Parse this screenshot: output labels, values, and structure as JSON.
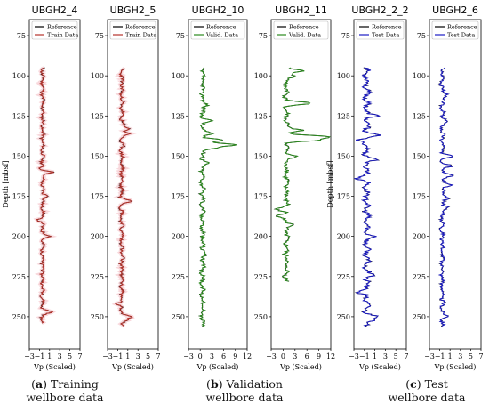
{
  "chart_data": [
    {
      "type": "line",
      "title": "UBGH2_4",
      "ylabel": "Depth [mbsf]",
      "xlabel": "Vp (Scaled)",
      "xlim": [
        -3,
        7
      ],
      "xticks": [
        -3,
        -1,
        1,
        3,
        5,
        7
      ],
      "ylim": [
        270,
        65
      ],
      "yticks": [
        75,
        100,
        125,
        150,
        175,
        200,
        225,
        250
      ],
      "legend": "top",
      "series": [
        {
          "name": "Reference",
          "color": "#000000"
        },
        {
          "name": "Train Data",
          "color": "#b5322a"
        }
      ],
      "depth_range": [
        95,
        254
      ],
      "profile": {
        "base": -0.4,
        "amp": 0.5,
        "spikes": [
          [
            160,
            1.8
          ],
          [
            158,
            -1.2
          ],
          [
            190,
            -1.3
          ],
          [
            175,
            0.9
          ],
          [
            247,
            1.4
          ],
          [
            200,
            1.0
          ]
        ]
      },
      "seed": 11
    },
    {
      "type": "line",
      "title": "UBGH2_5",
      "ylabel": "",
      "xlabel": "Vp (Scaled)",
      "xlim": [
        -3,
        7
      ],
      "xticks": [
        -3,
        -1,
        1,
        3,
        5,
        7
      ],
      "ylim": [
        270,
        65
      ],
      "yticks": [
        75,
        100,
        125,
        150,
        175,
        200,
        225,
        250
      ],
      "legend": "top",
      "series": [
        {
          "name": "Reference",
          "color": "#000000"
        },
        {
          "name": "Train Data",
          "color": "#b5322a"
        }
      ],
      "depth_range": [
        95,
        256
      ],
      "profile": {
        "base": -0.2,
        "amp": 0.6,
        "spikes": [
          [
            133,
            1.6
          ],
          [
            136,
            1.2
          ],
          [
            178,
            1.8
          ],
          [
            242,
            -1.4
          ],
          [
            250,
            1.8
          ],
          [
            252,
            1.2
          ]
        ]
      },
      "seed": 23
    },
    {
      "type": "line",
      "title": "UBGH2_10",
      "ylabel": "",
      "xlabel": "Vp (Scaled)",
      "xlim": [
        -3,
        12
      ],
      "xticks": [
        -3,
        0,
        3,
        6,
        9,
        12
      ],
      "ylim": [
        270,
        65
      ],
      "yticks": [
        75,
        100,
        125,
        150,
        175,
        200,
        225,
        250
      ],
      "legend": "top",
      "series": [
        {
          "name": "Reference",
          "color": "#000000"
        },
        {
          "name": "Valid. Data",
          "color": "#2b8a1e"
        }
      ],
      "depth_range": [
        95,
        256
      ],
      "profile": {
        "base": 0.6,
        "amp": 0.9,
        "spikes": [
          [
            128,
            2.5
          ],
          [
            136,
            3.0
          ],
          [
            140,
            6.0
          ],
          [
            143,
            9.0
          ],
          [
            145,
            4.0
          ],
          [
            118,
            2.2
          ],
          [
            154,
            2.0
          ],
          [
            210,
            1.6
          ]
        ]
      },
      "seed": 37
    },
    {
      "type": "line",
      "title": "UBGH2_11",
      "ylabel": "",
      "xlabel": "Vp (Scaled)",
      "xlim": [
        -3,
        12
      ],
      "xticks": [
        -3,
        0,
        3,
        6,
        9,
        12
      ],
      "ylim": [
        270,
        65
      ],
      "yticks": [
        75,
        100,
        125,
        150,
        175,
        200,
        225,
        250
      ],
      "legend": "top",
      "series": [
        {
          "name": "Reference",
          "color": "#000000"
        },
        {
          "name": "Valid. Data",
          "color": "#2b8a1e"
        }
      ],
      "depth_range": [
        95,
        228
      ],
      "profile": {
        "base": 0.8,
        "amp": 1.0,
        "spikes": [
          [
            97,
            5.0
          ],
          [
            100,
            3.5
          ],
          [
            117,
            6.5
          ],
          [
            134,
            5.0
          ],
          [
            138,
            11.5
          ],
          [
            140,
            9.0
          ],
          [
            150,
            3.5
          ],
          [
            183,
            -1.5
          ],
          [
            187,
            -1.8
          ],
          [
            193,
            2.2
          ]
        ]
      },
      "seed": 41
    },
    {
      "type": "line",
      "title": "UBGH2_2_2",
      "ylabel": "Depth [mbsf]",
      "xlabel": "Vp (Scaled)",
      "xlim": [
        -3,
        7
      ],
      "xticks": [
        -3,
        -1,
        1,
        3,
        5,
        7
      ],
      "ylim": [
        270,
        65
      ],
      "yticks": [
        75,
        100,
        125,
        150,
        175,
        200,
        225,
        250
      ],
      "legend": "top",
      "series": [
        {
          "name": "Reference",
          "color": "#000000"
        },
        {
          "name": "Test Data",
          "color": "#1c1cc4"
        }
      ],
      "depth_range": [
        95,
        256
      ],
      "profile": {
        "base": -0.6,
        "amp": 0.9,
        "spikes": [
          [
            125,
            1.2
          ],
          [
            137,
            1.6
          ],
          [
            140,
            -2.4
          ],
          [
            152,
            1.1
          ],
          [
            164,
            -2.3
          ],
          [
            200,
            1.0
          ],
          [
            224,
            1.2
          ],
          [
            235,
            -2.4
          ],
          [
            250,
            1.5
          ],
          [
            252,
            0.9
          ]
        ]
      },
      "seed": 53
    },
    {
      "type": "line",
      "title": "UBGH2_6",
      "ylabel": "",
      "xlabel": "Vp (Scaled)",
      "xlim": [
        -3,
        7
      ],
      "xticks": [
        -3,
        -1,
        1,
        3,
        5,
        7
      ],
      "ylim": [
        270,
        65
      ],
      "yticks": [
        75,
        100,
        125,
        150,
        175,
        200,
        225,
        250
      ],
      "legend": "top",
      "series": [
        {
          "name": "Reference",
          "color": "#000000"
        },
        {
          "name": "Test Data",
          "color": "#1c1cc4"
        }
      ],
      "depth_range": [
        95,
        256
      ],
      "profile": {
        "base": -0.5,
        "amp": 0.6,
        "spikes": [
          [
            112,
            0.8
          ],
          [
            128,
            0.6
          ],
          [
            150,
            1.6
          ],
          [
            156,
            1.4
          ],
          [
            162,
            1.8
          ],
          [
            168,
            1.5
          ],
          [
            176,
            0.8
          ],
          [
            182,
            1.0
          ],
          [
            250,
            0.6
          ]
        ]
      },
      "seed": 67
    }
  ],
  "captions": [
    {
      "letter": "a",
      "line1": " Training",
      "line2": "wellbore data"
    },
    {
      "letter": "b",
      "line1": " Validation",
      "line2": "wellbore data"
    },
    {
      "letter": "c",
      "line1": " Test",
      "line2": "wellbore data"
    }
  ]
}
